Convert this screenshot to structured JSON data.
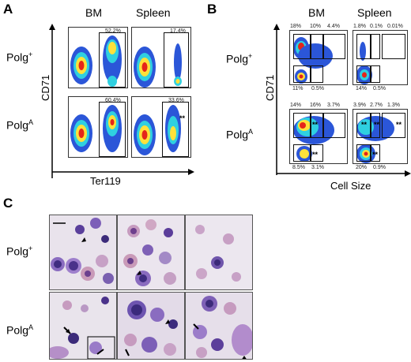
{
  "panelA": {
    "letter": "A",
    "columns": [
      "BM",
      "Spleen"
    ],
    "rows": [
      {
        "label_main": "Polg",
        "label_sup": "+",
        "gates": [
          "52.2%",
          "17.4%"
        ]
      },
      {
        "label_main": "Polg",
        "label_sup": "A",
        "gates": [
          "60.4%",
          "33.6%"
        ]
      }
    ],
    "stars": "**",
    "ylabel": "CD71",
    "xlabel": "Ter119"
  },
  "panelB": {
    "letter": "B",
    "columns": [
      "BM",
      "Spleen"
    ],
    "rows": [
      {
        "label_main": "Polg",
        "label_sup": "+",
        "bm_top": [
          "18%",
          "10%",
          "4.4%"
        ],
        "bm_bottom": [
          "11%",
          "0.5%"
        ],
        "sp_top": [
          "1.8%",
          "0.1%",
          "0.01%"
        ],
        "sp_bottom": [
          "14%",
          "0.5%"
        ]
      },
      {
        "label_main": "Polg",
        "label_sup": "A",
        "bm_top": [
          "14%",
          "16%",
          "3.7%"
        ],
        "bm_bottom": [
          "8.5%",
          "3.1%"
        ],
        "sp_top": [
          "3.9%",
          "2.7%",
          "1.3%"
        ],
        "sp_bottom": [
          "20%",
          "0.9%"
        ]
      }
    ],
    "stars": "**",
    "ylabel": "CD71",
    "xlabel": "Cell Size"
  },
  "panelC": {
    "letter": "C",
    "rows": [
      {
        "label_main": "Polg",
        "label_sup": "+"
      },
      {
        "label_main": "Polg",
        "label_sup": "A"
      }
    ]
  }
}
